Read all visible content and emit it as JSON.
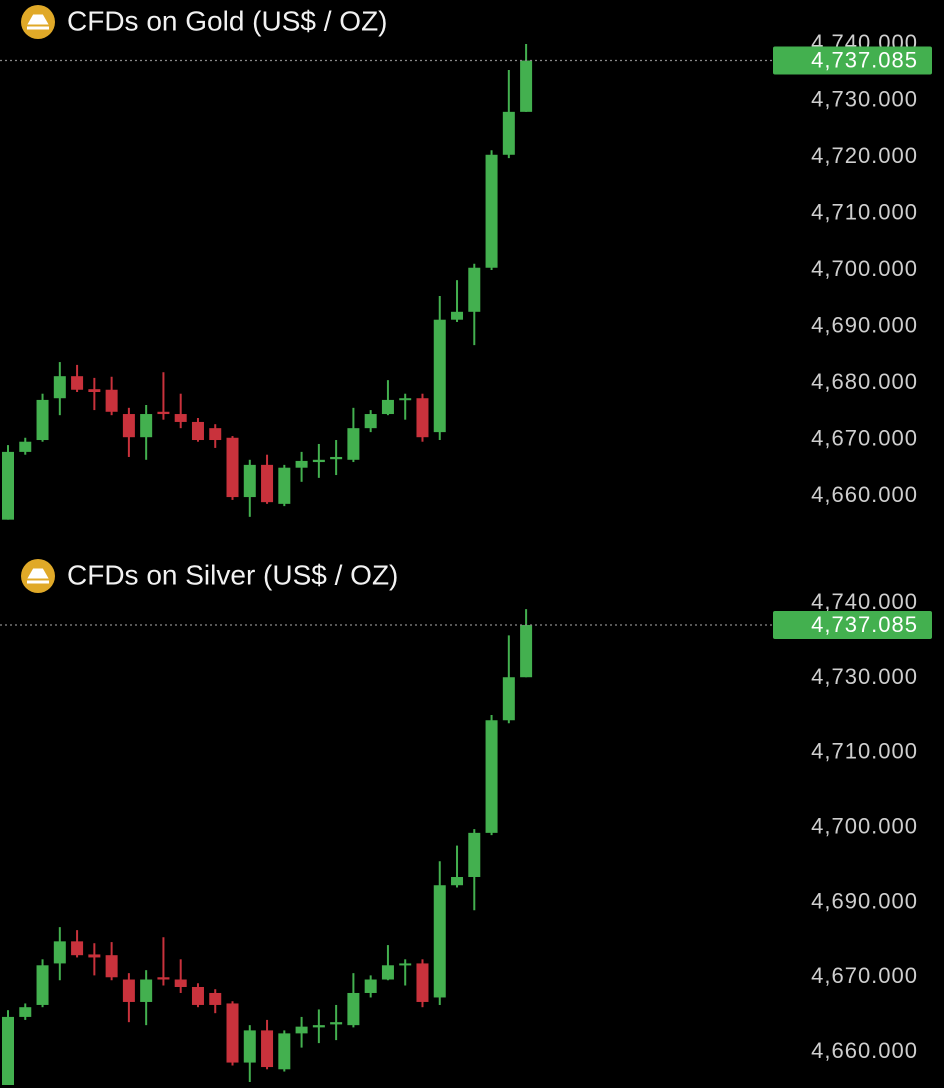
{
  "chart_data": [
    {
      "type": "candlestick",
      "title": "CFDs on Gold (US$ / OZ)",
      "yscale": "linear",
      "up_color": "#43b04f",
      "down_color": "#c9323c",
      "open": [
        4655.8,
        4667.8,
        4669.9,
        4677.3,
        4681.2,
        4678.9,
        4678.8,
        4674.5,
        4670.4,
        4674.9,
        4674.5,
        4673.1,
        4672.0,
        4670.3,
        4659.8,
        4665.5,
        4658.6,
        4665.0,
        4666.0,
        4666.5,
        4666.4,
        4672.0,
        4674.5,
        4677.0,
        4677.3,
        4671.3,
        4691.2,
        4692.6,
        4700.4,
        4720.4,
        4728.0
      ],
      "high": [
        4669.0,
        4670.3,
        4678.1,
        4683.7,
        4683.2,
        4680.9,
        4681.1,
        4675.6,
        4676.1,
        4681.9,
        4678.1,
        4673.8,
        4672.7,
        4670.6,
        4666.4,
        4667.3,
        4665.5,
        4667.8,
        4669.2,
        4669.9,
        4675.6,
        4675.2,
        4680.5,
        4678.1,
        4678.1,
        4695.4,
        4698.2,
        4701.1,
        4721.2,
        4735.4,
        4740.0
      ],
      "low": [
        4655.8,
        4667.3,
        4669.6,
        4674.3,
        4678.4,
        4675.2,
        4674.3,
        4666.9,
        4666.4,
        4673.5,
        4672.0,
        4669.6,
        4668.5,
        4659.3,
        4656.3,
        4658.6,
        4658.2,
        4662.5,
        4663.2,
        4663.7,
        4666.0,
        4671.3,
        4674.3,
        4673.5,
        4669.6,
        4669.9,
        4690.8,
        4686.7,
        4700.0,
        4719.8,
        4728.0
      ],
      "close": [
        4667.8,
        4669.6,
        4677.0,
        4681.2,
        4678.8,
        4678.4,
        4674.9,
        4670.4,
        4674.5,
        4674.5,
        4673.1,
        4669.9,
        4669.9,
        4659.8,
        4665.5,
        4658.9,
        4665.0,
        4666.2,
        4666.4,
        4666.9,
        4672.0,
        4674.5,
        4677.0,
        4677.3,
        4670.4,
        4691.2,
        4692.6,
        4700.4,
        4720.4,
        4728.0,
        4737.085
      ],
      "ylim": [
        4652.2,
        4747.8
      ],
      "yticks": [
        {
          "value": 4740,
          "label": "4,740.000"
        },
        {
          "value": 4730,
          "label": "4,730.000"
        },
        {
          "value": 4720,
          "label": "4,720.000"
        },
        {
          "value": 4710,
          "label": "4,710.000"
        },
        {
          "value": 4700,
          "label": "4,700.000"
        },
        {
          "value": 4690,
          "label": "4,690.000"
        },
        {
          "value": 4680,
          "label": "4,680.000"
        },
        {
          "value": 4670,
          "label": "4,670.000"
        },
        {
          "value": 4660,
          "label": "4,660.000"
        }
      ],
      "price_line": {
        "value": 4737.085,
        "label": "4,737.085",
        "color": "#43b04f"
      }
    },
    {
      "type": "candlestick",
      "title": "CFDs on Silver (US$ / OZ)",
      "yscale": "piecewise",
      "up_color": "#43b04f",
      "down_color": "#c9323c",
      "open": [
        4655.6,
        4664.7,
        4666.3,
        4673.7,
        4679.6,
        4676.1,
        4675.9,
        4669.7,
        4666.7,
        4670.0,
        4669.7,
        4668.7,
        4667.9,
        4666.5,
        4658.6,
        4662.9,
        4657.7,
        4662.5,
        4663.3,
        4663.7,
        4663.6,
        4667.9,
        4669.7,
        4673.2,
        4673.7,
        4667.3,
        4692.3,
        4693.4,
        4699.3,
        4718.7,
        4730.1
      ],
      "high": [
        4665.6,
        4666.5,
        4674.8,
        4683.4,
        4682.6,
        4679.1,
        4679.4,
        4671.1,
        4671.9,
        4680.7,
        4674.8,
        4669.2,
        4668.4,
        4666.8,
        4663.6,
        4664.3,
        4662.9,
        4664.7,
        4665.7,
        4666.3,
        4671.1,
        4670.5,
        4678.6,
        4674.8,
        4674.8,
        4695.5,
        4697.6,
        4699.8,
        4720.1,
        4735.7,
        4739.2
      ],
      "low": [
        4655.6,
        4664.3,
        4666.0,
        4669.6,
        4675.3,
        4670.5,
        4669.6,
        4664.0,
        4663.6,
        4668.9,
        4667.9,
        4666.0,
        4665.2,
        4658.2,
        4656.0,
        4657.7,
        4657.4,
        4660.6,
        4661.2,
        4661.6,
        4663.3,
        4667.3,
        4669.6,
        4668.9,
        4666.0,
        4666.3,
        4692.0,
        4687.9,
        4699.0,
        4717.9,
        4730.1
      ],
      "close": [
        4664.7,
        4666.0,
        4673.2,
        4679.6,
        4675.9,
        4675.3,
        4670.0,
        4666.7,
        4669.7,
        4669.7,
        4668.7,
        4666.3,
        4666.3,
        4658.6,
        4662.9,
        4658.0,
        4662.5,
        4663.4,
        4663.6,
        4664.0,
        4667.9,
        4669.7,
        4673.2,
        4673.7,
        4666.7,
        4692.3,
        4693.4,
        4699.3,
        4718.7,
        4730.1,
        4737.085
      ],
      "ylim": [
        4655.2,
        4745.1
      ],
      "yticks": [
        {
          "value": 4740,
          "label": "4,740.000"
        },
        {
          "value": 4730,
          "label": "4,730.000"
        },
        {
          "value": 4710,
          "label": "4,710.000"
        },
        {
          "value": 4700,
          "label": "4,700.000"
        },
        {
          "value": 4690,
          "label": "4,690.000"
        },
        {
          "value": 4670,
          "label": "4,670.000"
        },
        {
          "value": 4660,
          "label": "4,660.000"
        }
      ],
      "price_line": {
        "value": 4737.085,
        "label": "4,737.085",
        "color": "#43b04f"
      }
    }
  ]
}
